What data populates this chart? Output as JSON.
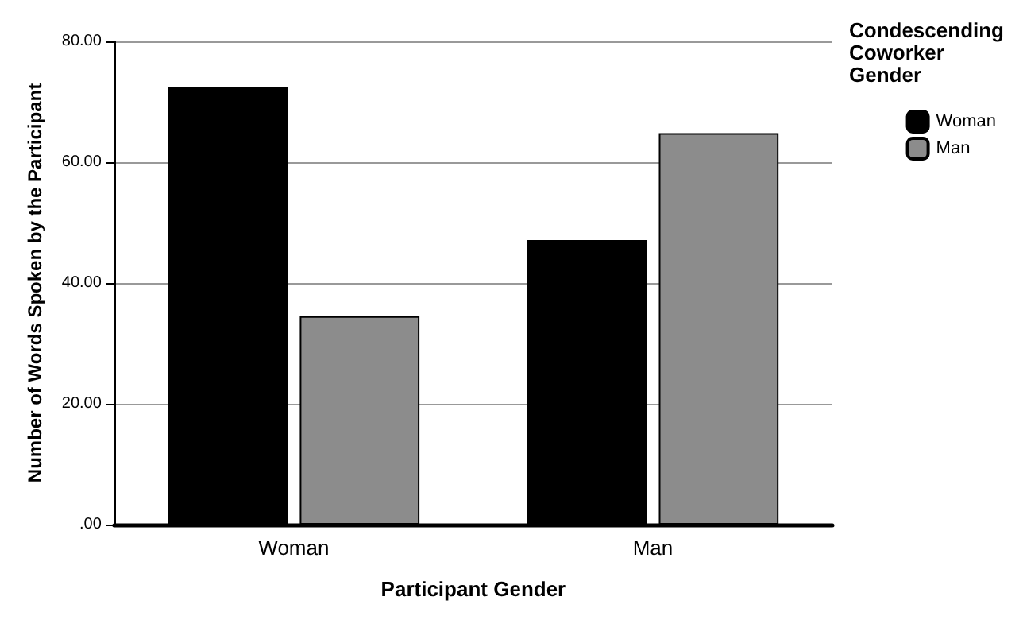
{
  "chart_data": {
    "type": "bar",
    "xlabel": "Participant Gender",
    "ylabel": "Number of Words Spoken by the Participant",
    "legend_title": "Condescending\nCoworker\nGender",
    "categories": [
      "Woman",
      "Man"
    ],
    "series": [
      {
        "name": "Woman",
        "color": "#000000",
        "values": [
          72.4,
          47.1
        ]
      },
      {
        "name": "Man",
        "color": "#8c8c8c",
        "values": [
          34.5,
          64.8
        ]
      }
    ],
    "ylim": [
      0,
      80
    ],
    "yticks": [
      {
        "value": 0,
        "label": ".00"
      },
      {
        "value": 20,
        "label": "20.00"
      },
      {
        "value": 40,
        "label": "40.00"
      },
      {
        "value": 60,
        "label": "60.00"
      },
      {
        "value": 80,
        "label": "80.00"
      }
    ],
    "grid": "y",
    "legend": "top right"
  }
}
